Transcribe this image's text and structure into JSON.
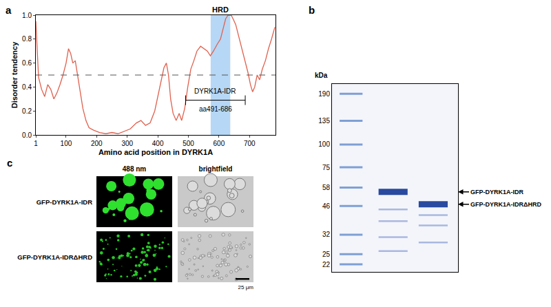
{
  "panel_labels": [
    "a",
    "b",
    "c"
  ],
  "chart_data": {
    "type": "line",
    "x": [
      1,
      5,
      10,
      20,
      30,
      40,
      50,
      60,
      70,
      80,
      90,
      100,
      108,
      115,
      122,
      130,
      138,
      145,
      155,
      165,
      175,
      190,
      210,
      230,
      250,
      270,
      290,
      310,
      330,
      345,
      360,
      375,
      390,
      400,
      410,
      420,
      428,
      435,
      442,
      450,
      460,
      470,
      478,
      488,
      498,
      508,
      518,
      528,
      540,
      552,
      562,
      572,
      582,
      595,
      605,
      615,
      622,
      630,
      640,
      648,
      655,
      665,
      675,
      685,
      695,
      703,
      710,
      717,
      725,
      733,
      742,
      752,
      762,
      772,
      783
    ],
    "values": [
      0.95,
      0.7,
      0.48,
      0.38,
      0.32,
      0.42,
      0.38,
      0.3,
      0.35,
      0.42,
      0.5,
      0.6,
      0.72,
      0.68,
      0.6,
      0.62,
      0.5,
      0.38,
      0.22,
      0.12,
      0.06,
      0.04,
      0.02,
      0.01,
      0.02,
      0.01,
      0.03,
      0.05,
      0.1,
      0.12,
      0.08,
      0.1,
      0.2,
      0.32,
      0.45,
      0.56,
      0.6,
      0.5,
      0.3,
      0.18,
      0.12,
      0.18,
      0.12,
      0.22,
      0.4,
      0.55,
      0.62,
      0.7,
      0.74,
      0.72,
      0.7,
      0.66,
      0.7,
      0.76,
      0.8,
      0.9,
      0.97,
      1.0,
      1.0,
      0.96,
      0.92,
      0.82,
      0.72,
      0.62,
      0.52,
      0.42,
      0.36,
      0.4,
      0.5,
      0.46,
      0.55,
      0.62,
      0.72,
      0.8,
      0.9
    ],
    "color": "#e0604e",
    "x_label": "Amino acid position in DYRK1A",
    "y_label": "Disorder tendency",
    "xlim": [
      1,
      785
    ],
    "xticks": [
      1,
      100,
      200,
      300,
      400,
      500,
      600,
      700
    ],
    "ylim": [
      0,
      1
    ],
    "yticks": [
      {
        "value": 0,
        "label": "0.0"
      },
      {
        "value": 0.2,
        "label": "0.2"
      },
      {
        "value": 0.4,
        "label": "0.4"
      },
      {
        "value": 0.6,
        "label": "0.6"
      },
      {
        "value": 0.8,
        "label": "0.8"
      },
      {
        "value": 1,
        "label": "1.0"
      }
    ],
    "grid": false,
    "threshold": 0.5,
    "highlight": {
      "label": "HRD",
      "start": 573,
      "end": 637,
      "color": "#9ec9f2"
    },
    "bracket": {
      "label": "DYRK1A-IDR",
      "sublabel": "aa491-686",
      "start": 491,
      "end": 686
    }
  },
  "gel": {
    "unit_label": "kDa",
    "kda_range": [
      20,
      215
    ],
    "ladder": [
      190,
      135,
      100,
      75,
      58,
      46,
      32,
      25,
      22
    ],
    "lanes": [
      {
        "label": "GFP-DYRK1A-IDR",
        "main_band": 55,
        "faint_bands": [
          44,
          38,
          31,
          26
        ]
      },
      {
        "label": "GFP-DYRK1A-IDRΔHRD",
        "main_band": 47,
        "faint_bands": [
          41,
          36,
          29
        ]
      }
    ]
  },
  "microscopy": {
    "columns": [
      "488 nm",
      "brightfield"
    ],
    "rows": [
      "GFP-DYRK1A-IDR",
      "GFP-DYRK1A-IDRΔHRD"
    ],
    "scale_bar": "25 μm"
  }
}
